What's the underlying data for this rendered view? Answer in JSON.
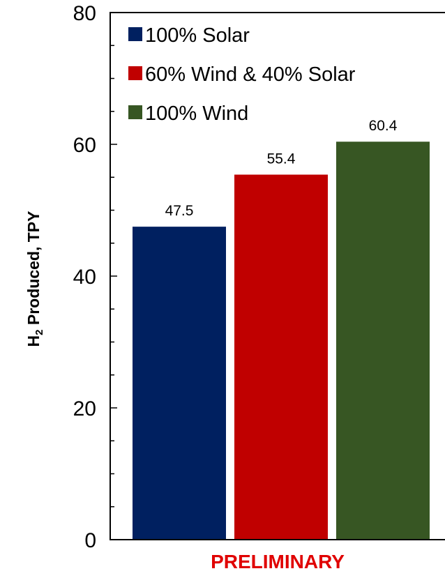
{
  "chart_data": {
    "type": "bar",
    "categories": [
      "100% Solar",
      "60% Wind & 40% Solar",
      "100% Wind"
    ],
    "values": [
      47.5,
      55.4,
      60.4
    ],
    "data_labels": [
      "47.5",
      "55.4",
      "60.4"
    ],
    "colors": [
      "#002060",
      "#C00000",
      "#375623"
    ],
    "legend": [
      {
        "label": "100% Solar",
        "color": "#002060"
      },
      {
        "label": "60% Wind & 40% Solar",
        "color": "#C00000"
      },
      {
        "label": "100% Wind",
        "color": "#375623"
      }
    ],
    "legend_position": "top-left",
    "ylabel": {
      "main": "H",
      "sub": "2",
      "rest": " Produced, TPY"
    },
    "ylim": [
      0,
      80
    ],
    "yticks": [
      "0",
      "20",
      "40",
      "60",
      "80"
    ],
    "grid": false
  },
  "footer": {
    "text": "PRELIMINARY",
    "color": "#E00000"
  }
}
